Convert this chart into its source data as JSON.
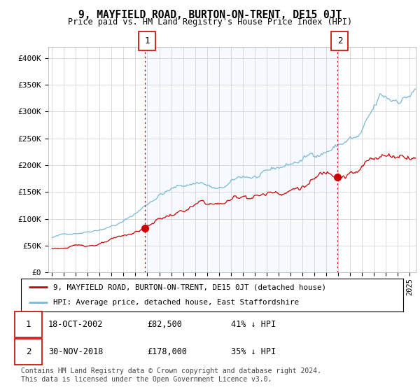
{
  "title": "9, MAYFIELD ROAD, BURTON-ON-TRENT, DE15 0JT",
  "subtitle": "Price paid vs. HM Land Registry's House Price Index (HPI)",
  "ylabel_vals": [
    "£0",
    "£50K",
    "£100K",
    "£150K",
    "£200K",
    "£250K",
    "£300K",
    "£350K",
    "£400K"
  ],
  "yticks": [
    0,
    50000,
    100000,
    150000,
    200000,
    250000,
    300000,
    350000,
    400000
  ],
  "ylim": [
    0,
    420000
  ],
  "xlim_start": 1994.7,
  "xlim_end": 2025.5,
  "hpi_color": "#7ab8d8",
  "price_color": "#cc0000",
  "vline_color": "#cc0000",
  "shade_color": "#ddeeff",
  "marker1_date": 2002.79,
  "marker1_value": 82500,
  "marker1_label": "1",
  "marker2_date": 2018.92,
  "marker2_value": 178000,
  "marker2_label": "2",
  "legend_label_price": "9, MAYFIELD ROAD, BURTON-ON-TRENT, DE15 0JT (detached house)",
  "legend_label_hpi": "HPI: Average price, detached house, East Staffordshire",
  "footer": "Contains HM Land Registry data © Crown copyright and database right 2024.\nThis data is licensed under the Open Government Licence v3.0.",
  "bg_color": "#ffffff",
  "grid_color": "#cccccc"
}
